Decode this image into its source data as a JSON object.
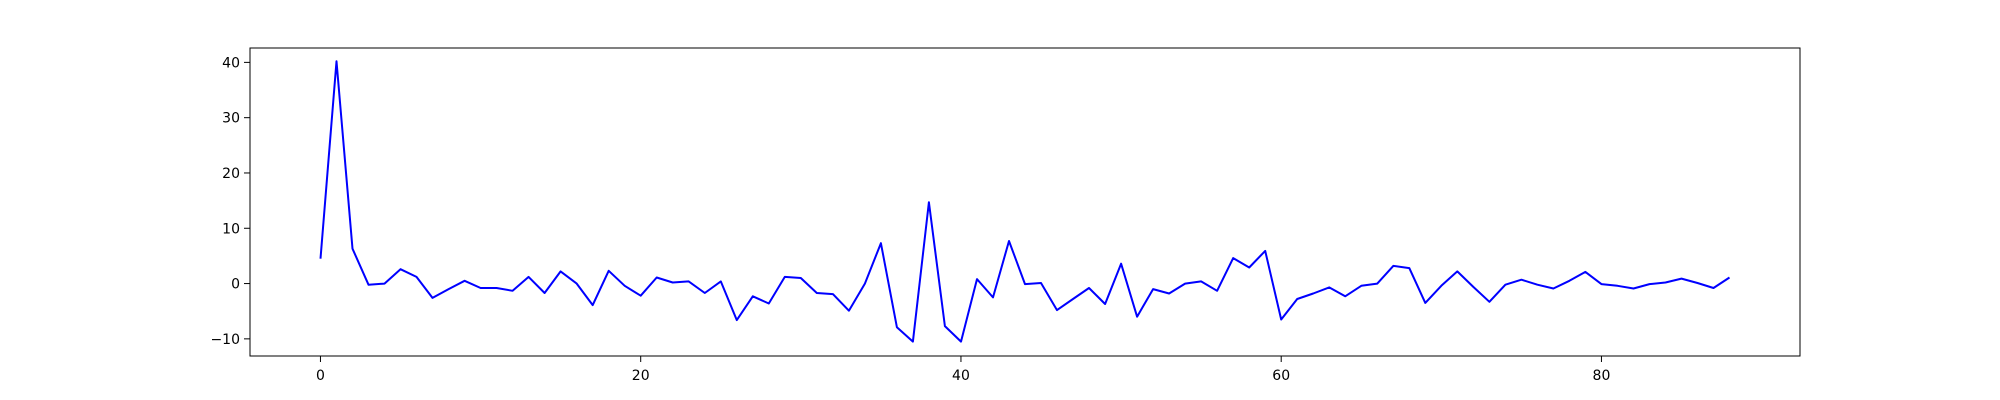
{
  "chart_data": {
    "type": "line",
    "title": "",
    "xlabel": "",
    "ylabel": "",
    "xlim": [
      -4.4,
      92.4
    ],
    "ylim": [
      -13.1,
      42.6
    ],
    "grid": false,
    "legend": "none",
    "xticks": [
      0,
      20,
      40,
      60,
      80
    ],
    "yticks": [
      -10,
      0,
      10,
      20,
      30,
      40
    ],
    "series": [
      {
        "color": "#0000ff",
        "x": [
          0,
          1,
          2,
          3,
          4,
          5,
          6,
          7,
          8,
          9,
          10,
          11,
          12,
          13,
          14,
          15,
          16,
          17,
          18,
          19,
          20,
          21,
          22,
          23,
          24,
          25,
          26,
          27,
          28,
          29,
          30,
          31,
          32,
          33,
          34,
          35,
          36,
          37,
          38,
          39,
          40,
          41,
          42,
          43,
          44,
          45,
          46,
          47,
          48,
          49,
          50,
          51,
          52,
          53,
          54,
          55,
          56,
          57,
          58,
          59,
          60,
          61,
          62,
          63,
          64,
          65,
          66,
          67,
          68,
          69,
          70,
          71,
          72,
          73,
          74,
          75,
          76,
          77,
          78,
          79,
          80,
          81,
          82,
          83,
          84,
          85,
          86,
          87,
          88
        ],
        "y": [
          4.5,
          40.2,
          6.3,
          -0.2,
          0,
          2.6,
          1.2,
          -2.6,
          -1,
          0.5,
          -0.8,
          -0.8,
          -1.3,
          1.2,
          -1.7,
          2.2,
          0,
          -3.9,
          2.3,
          -0.4,
          -2.2,
          1.1,
          0.2,
          0.4,
          -1.7,
          0.4,
          -6.6,
          -2.3,
          -3.6,
          1.2,
          1,
          -1.7,
          -1.9,
          -4.9,
          0,
          7.3,
          -7.9,
          -10.5,
          14.7,
          -7.7,
          -10.5,
          0.8,
          -2.5,
          7.7,
          -0.1,
          0.1,
          -4.8,
          -2.8,
          -0.8,
          -3.7,
          3.6,
          -6,
          -1,
          -1.8,
          0,
          0.4,
          -1.3,
          4.6,
          2.9,
          5.9,
          -6.5,
          -2.8,
          -1.8,
          -0.7,
          -2.3,
          -0.4,
          0,
          3.2,
          2.8,
          -3.5,
          -0.4,
          2.2,
          -0.6,
          -3.3,
          -0.2,
          0.7,
          -0.2,
          -0.9,
          0.5,
          2.1,
          -0.1,
          -0.4,
          -0.9,
          -0.1,
          0.2,
          0.9,
          0.1,
          -0.8,
          1.1
        ]
      }
    ]
  }
}
